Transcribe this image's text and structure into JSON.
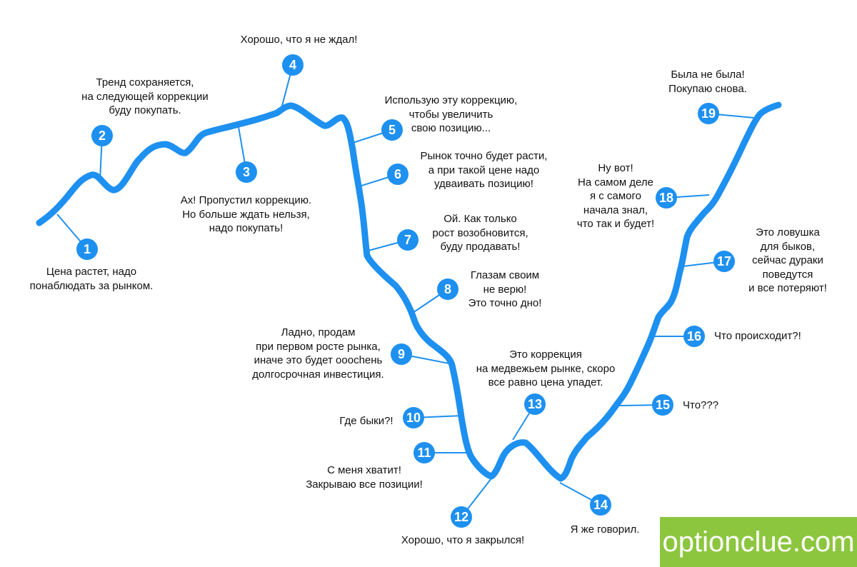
{
  "colors": {
    "line": "#1e90f0",
    "marker_bg": "#1e90f0",
    "marker_text": "#ffffff",
    "text": "#111111",
    "brand_bg": "#8cc63f",
    "brand_text": "#ffffff"
  },
  "steps": [
    {
      "number": "1",
      "text": "Цена растет, надо\nпонаблюдать за рынком."
    },
    {
      "number": "2",
      "text": "Тренд сохраняется,\nна следующей коррекции\nбуду покупать."
    },
    {
      "number": "3",
      "text": "Ах! Пропустил коррекцию.\nНо больше ждать нельзя,\nнадо покупать!"
    },
    {
      "number": "4",
      "text": "Хорошо, что я не ждал!"
    },
    {
      "number": "5",
      "text": "Использую эту коррекцию,\nчтобы увеличить\nсвою позицию..."
    },
    {
      "number": "6",
      "text": "Рынок точно будет расти,\nа при такой цене надо\nудваивать позицию!"
    },
    {
      "number": "7",
      "text": "Ой. Как только\nрост возобновится,\nбуду продавать!"
    },
    {
      "number": "8",
      "text": "Глазам своим\nне верю!\nЭто точно дно!"
    },
    {
      "number": "9",
      "text": "Ладно, продам\nпри первом росте рынка,\nиначе это будет оооchень\nдолгосрочная инвестиция."
    },
    {
      "number": "10",
      "text": "Где быки?!"
    },
    {
      "number": "11",
      "text": "С меня хватит!\nЗакрываю все позиции!"
    },
    {
      "number": "12",
      "text": "Хорошо, что я закрылся!"
    },
    {
      "number": "13",
      "text": "Это коррекция\nна медвежьем рынке, скоро\nвсе равно цена упадет."
    },
    {
      "number": "14",
      "text": "Я же говорил."
    },
    {
      "number": "15",
      "text": "Что???"
    },
    {
      "number": "16",
      "text": "Что происходит?!"
    },
    {
      "number": "17",
      "text": "Это ловушка\nдля быков,\nсейчас дураки\nповедутся\nи все потеряют!"
    },
    {
      "number": "18",
      "text": "Ну вот!\nНа самом деле\nя с самого\nначала знал,\nчто так и будет!"
    },
    {
      "number": "19",
      "text": "Была не была!\nПокупаю снова."
    }
  ],
  "brand": {
    "text": "optionclue.com"
  }
}
